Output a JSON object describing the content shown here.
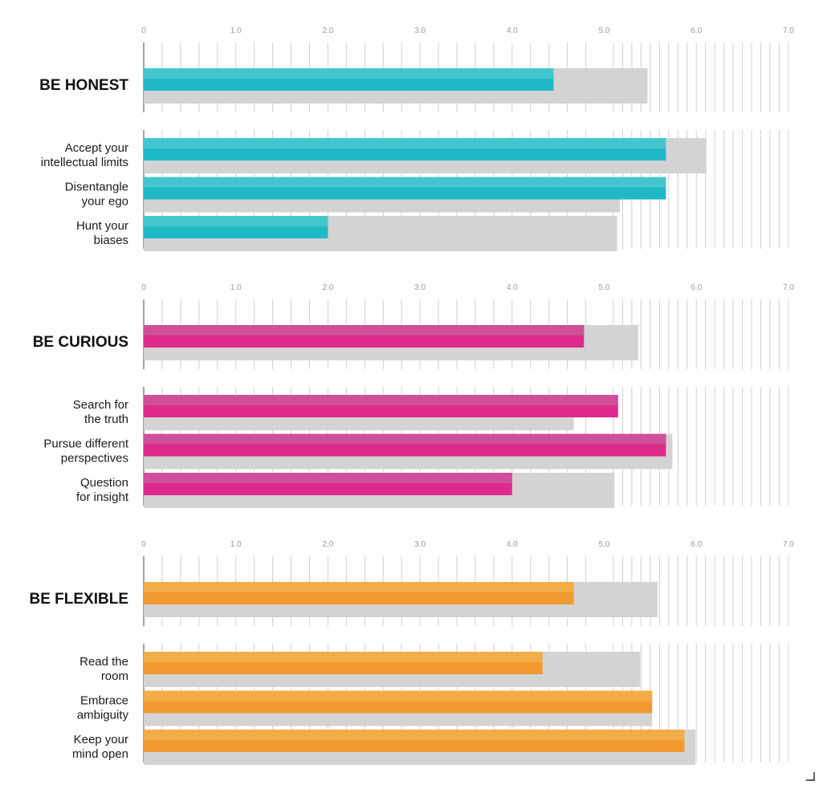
{
  "chart_data": {
    "type": "bar",
    "xlim": [
      0,
      7
    ],
    "x_tick_labels": [
      "0",
      "1.0",
      "2.0",
      "3.0",
      "4.0",
      "5.0",
      "6.0",
      "7.0"
    ],
    "grid": true,
    "colors": {
      "gray": "#d3d3d4",
      "grid": "#cfcfcf",
      "axis": "#8a8a8a"
    },
    "groups": [
      {
        "heading": "BE HONEST",
        "heading_lines": [
          "BE HONEST"
        ],
        "heading_value": 4.45,
        "heading_gray": 5.47,
        "bar_color": "#1fb8c6",
        "bar_highlight": "#44c6ce",
        "items": [
          {
            "label": "Accept your intellectual limits",
            "label_lines": [
              "Accept your",
              "intellectual limits"
            ],
            "value": 5.67,
            "gray": 6.11
          },
          {
            "label": "Disentangle your ego",
            "label_lines": [
              "Disentangle",
              "your ego"
            ],
            "value": 5.67,
            "gray": 5.17
          },
          {
            "label": "Hunt your biases",
            "label_lines": [
              "Hunt your",
              "biases"
            ],
            "value": 2.0,
            "gray": 5.14
          }
        ]
      },
      {
        "heading": "BE CURIOUS",
        "heading_lines": [
          "BE CURIOUS"
        ],
        "heading_value": 4.78,
        "heading_gray": 5.37,
        "bar_color": "#df2a8b",
        "bar_highlight": "#d14e98",
        "items": [
          {
            "label": "Search for the truth",
            "label_lines": [
              "Search for",
              "the truth"
            ],
            "value": 5.15,
            "gray": 4.67
          },
          {
            "label": "Pursue different perspectives",
            "label_lines": [
              "Pursue different",
              "perspectives"
            ],
            "value": 5.67,
            "gray": 5.74
          },
          {
            "label": "Question for insight",
            "label_lines": [
              "Question",
              "for insight"
            ],
            "value": 4.0,
            "gray": 5.11
          }
        ]
      },
      {
        "heading": "BE FLEXIBLE",
        "heading_lines": [
          "BE FLEXIBLE"
        ],
        "heading_value": 4.67,
        "heading_gray": 5.58,
        "bar_color": "#f09a30",
        "bar_highlight": "#f2ad46",
        "items": [
          {
            "label": "Read the room",
            "label_lines": [
              "Read the",
              "room"
            ],
            "value": 4.33,
            "gray": 5.39
          },
          {
            "label": "Embrace ambiguity",
            "label_lines": [
              "Embrace",
              "ambiguity"
            ],
            "value": 5.52,
            "gray": 5.52
          },
          {
            "label": "Keep your mind open",
            "label_lines": [
              "Keep your",
              "mind open"
            ],
            "value": 5.87,
            "gray": 5.99
          }
        ]
      }
    ]
  }
}
